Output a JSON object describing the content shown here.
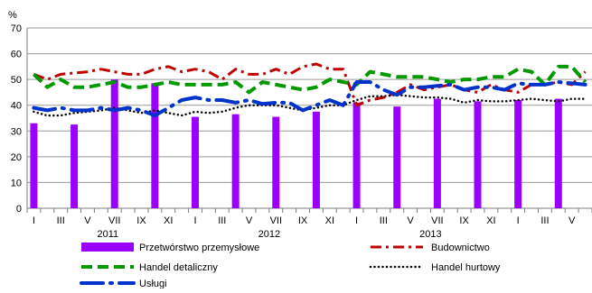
{
  "chart_data": {
    "type": "bar",
    "unit_label": "%",
    "ylim": [
      0,
      70
    ],
    "yticks": [
      0,
      10,
      20,
      30,
      40,
      50,
      60,
      70
    ],
    "grid": "horizontal",
    "legend_position": "bottom",
    "categories": [
      "I",
      "II",
      "III",
      "IV",
      "V",
      "VI",
      "VII",
      "VIII",
      "IX",
      "X",
      "XI",
      "XII",
      "I",
      "II",
      "III",
      "IV",
      "V",
      "VI",
      "VII",
      "VIII",
      "IX",
      "X",
      "XI",
      "XII",
      "I",
      "II",
      "III",
      "IV",
      "V",
      "VI",
      "VII",
      "VIII",
      "IX",
      "X",
      "XI",
      "XII",
      "I",
      "II",
      "III",
      "IV",
      "V",
      "VI"
    ],
    "tick_labels": [
      "I",
      "III",
      "V",
      "VII",
      "IX",
      "XI",
      "I",
      "III",
      "V",
      "VII",
      "IX",
      "XI",
      "I",
      "III",
      "V",
      "VII",
      "IX",
      "XI",
      "I",
      "III",
      "V"
    ],
    "years": [
      "2011",
      "2012",
      "2013"
    ],
    "colors": {
      "bars": "#9900ff",
      "budownictwo": "#c00000",
      "handel_detaliczny": "#009900",
      "handel_hurtowy": "#000000",
      "uslugi": "#0033cc",
      "grid": "#9a9a9a"
    },
    "series": [
      {
        "name": "Przetwórstwo przemysłowe",
        "kind": "bar",
        "values": [
          33,
          null,
          null,
          32.5,
          null,
          null,
          50,
          null,
          null,
          48.5,
          null,
          null,
          35.5,
          null,
          null,
          36.5,
          null,
          null,
          35.5,
          null,
          null,
          37.5,
          null,
          null,
          41,
          null,
          null,
          39.5,
          null,
          null,
          42.5,
          null,
          null,
          41.5,
          null,
          null,
          42,
          null,
          null,
          42.5,
          null,
          null
        ]
      },
      {
        "name": "Budownictwo",
        "kind": "dashdot",
        "values": [
          52,
          50,
          52,
          52.5,
          53,
          54,
          53,
          52,
          52,
          54,
          55,
          53,
          54,
          53,
          50,
          54,
          52,
          52,
          54,
          52,
          55,
          56,
          54,
          54,
          40,
          42,
          43,
          45,
          48,
          46,
          47,
          48,
          46,
          45,
          48,
          46,
          45,
          48,
          48,
          49,
          48,
          53
        ]
      },
      {
        "name": "Handel detaliczny",
        "kind": "dashed",
        "values": [
          52,
          47,
          50,
          47,
          47,
          48,
          49,
          47,
          47,
          48,
          49,
          48,
          48,
          48,
          48,
          49,
          45,
          49,
          48,
          47,
          46,
          47,
          50,
          49,
          48,
          53,
          52,
          51,
          51,
          51,
          50,
          49,
          50,
          50,
          51,
          51,
          54,
          53,
          48,
          55,
          55,
          49
        ]
      },
      {
        "name": "Handel hurtowy",
        "kind": "dotted",
        "values": [
          37.5,
          36,
          36,
          37,
          37.5,
          38,
          39,
          38,
          37,
          38,
          37,
          36,
          37.5,
          37,
          37.5,
          39,
          40,
          40,
          40,
          39,
          38,
          39,
          40,
          40,
          42,
          43.5,
          43.5,
          44,
          43.5,
          43,
          43,
          42.5,
          41,
          42,
          41.5,
          41.5,
          42,
          42.5,
          42,
          41.5,
          42.5,
          42.5
        ]
      },
      {
        "name": "Usługi",
        "kind": "longdash-dot",
        "values": [
          39,
          38,
          39,
          38,
          38,
          39,
          38,
          39,
          38,
          36,
          39,
          42,
          43,
          42,
          42,
          41,
          42,
          40.5,
          41,
          41,
          38,
          40,
          42,
          40,
          49,
          49,
          46,
          44,
          47,
          47,
          47.5,
          48,
          46,
          47,
          47,
          46,
          48.5,
          48,
          48,
          49,
          48.5,
          48
        ]
      }
    ]
  }
}
